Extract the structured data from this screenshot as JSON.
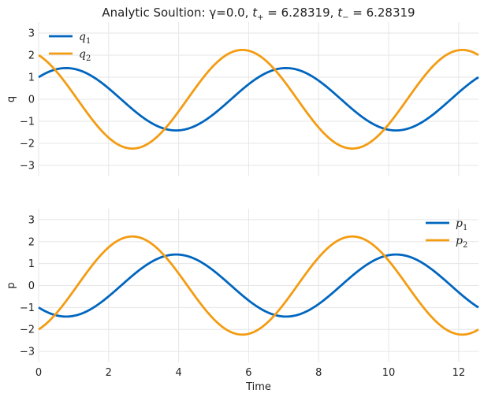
{
  "chart_data": {
    "type": "line",
    "title": {
      "prefix": "Analytic Soultion: γ=0.0, ",
      "t_plus_symbol": "t",
      "t_plus_sub": "+",
      "t_plus_value": " = 6.28319, ",
      "t_minus_symbol": "t",
      "t_minus_sub": "−",
      "t_minus_value": " = 6.28319"
    },
    "xlabel": "Time",
    "xlim": [
      0,
      12.566
    ],
    "xticks": [
      0,
      2,
      4,
      6,
      8,
      10,
      12
    ],
    "grid": true,
    "colors": {
      "series1": "#0066bf",
      "series2": "#f39c12"
    },
    "panels": [
      {
        "ylabel": "q",
        "ylim": [
          -3.5,
          3.5
        ],
        "yticks": [
          -3,
          -2,
          -1,
          0,
          1,
          2,
          3
        ],
        "legend_position": "top-left",
        "series": [
          {
            "name_base": "q",
            "name_sub": "1",
            "amplitude": 1.414,
            "phase": 0.7854,
            "color": "#0066bf"
          },
          {
            "name_base": "q",
            "name_sub": "2",
            "amplitude": 2.236,
            "phase": 2.0344,
            "color": "#f39c12"
          }
        ]
      },
      {
        "ylabel": "p",
        "ylim": [
          -3.5,
          3.5
        ],
        "yticks": [
          -3,
          -2,
          -1,
          0,
          1,
          2,
          3
        ],
        "legend_position": "top-right",
        "series": [
          {
            "name_base": "p",
            "name_sub": "1",
            "amplitude": 1.414,
            "phase": 3.927,
            "color": "#0066bf"
          },
          {
            "name_base": "p",
            "name_sub": "2",
            "amplitude": 2.236,
            "phase": 5.176,
            "color": "#f39c12"
          }
        ]
      }
    ]
  }
}
